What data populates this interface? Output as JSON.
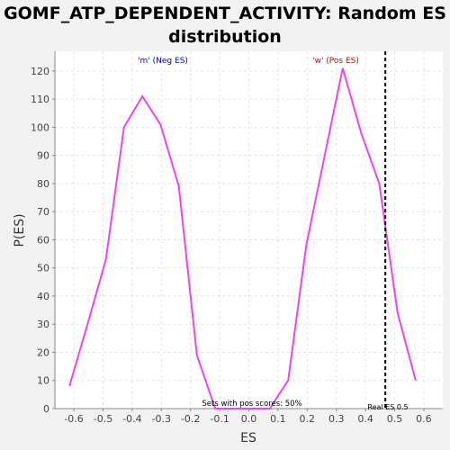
{
  "chart_data": {
    "type": "line",
    "title": "GOMF_ATP_DEPENDENT_ACTIVITY: Random ES distribution",
    "xlabel": "ES",
    "ylabel": "P(ES)",
    "xlim": [
      -0.665,
      0.665
    ],
    "ylim": [
      0,
      127
    ],
    "x_ticks": [
      -0.6,
      -0.5,
      -0.4,
      -0.3,
      -0.2,
      -0.1,
      0.0,
      0.1,
      0.2,
      0.3,
      0.4,
      0.5,
      0.6
    ],
    "x_tick_labels": [
      "-0.6",
      "-0.5",
      "-0.4",
      "-0.3",
      "-0.2",
      "-0.1",
      "0.0",
      "0.1",
      "0.2",
      "0.3",
      "0.4",
      "0.5",
      "0.6"
    ],
    "y_ticks": [
      0,
      10,
      20,
      30,
      40,
      50,
      60,
      70,
      80,
      90,
      100,
      110,
      120
    ],
    "y_tick_labels": [
      "0",
      "10",
      "20",
      "30",
      "40",
      "50",
      "60",
      "70",
      "80",
      "90",
      "100",
      "110",
      "120"
    ],
    "grid": true,
    "series": [
      {
        "color": "#ee44ee",
        "x": [
          -0.615,
          -0.553,
          -0.49,
          -0.428,
          -0.365,
          -0.303,
          -0.24,
          -0.178,
          -0.115,
          -0.053,
          0.01,
          0.072,
          0.135,
          0.197,
          0.26,
          0.322,
          0.385,
          0.447,
          0.51,
          0.572
        ],
        "y": [
          8,
          30,
          53,
          100,
          111,
          101,
          79,
          19,
          0,
          0,
          0,
          0,
          10,
          58,
          90,
          121,
          98,
          80,
          34,
          10
        ]
      }
    ],
    "real_es": {
      "x": 0.468,
      "label": "Real ES 0.5",
      "color": "#000000"
    },
    "annotations": [
      {
        "text": "'m' (Neg ES)",
        "color": "#0000cc"
      },
      {
        "text": "'w' (Pos ES)",
        "color": "#cc0000"
      },
      {
        "text": "Sets with pos scores: 50%",
        "color": "#000000"
      }
    ]
  }
}
